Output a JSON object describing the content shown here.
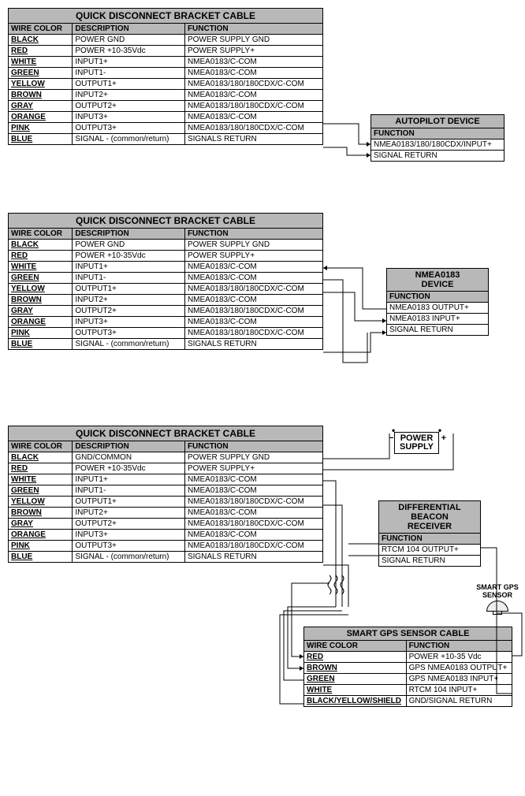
{
  "sections": [
    {
      "cable": {
        "title": "QUICK DISCONNECT BRACKET CABLE",
        "headers": [
          "WIRE COLOR",
          "DESCRIPTION",
          "FUNCTION"
        ],
        "rows": [
          [
            "BLACK",
            "POWER GND",
            "POWER SUPPLY GND"
          ],
          [
            "RED",
            "POWER +10-35Vdc",
            "POWER SUPPLY+"
          ],
          [
            "WHITE",
            "INPUT1+",
            "NMEA0183/C-COM"
          ],
          [
            "GREEN",
            "INPUT1-",
            "NMEA0183/C-COM"
          ],
          [
            "YELLOW",
            "OUTPUT1+",
            "NMEA0183/180/180CDX/C-COM"
          ],
          [
            "BROWN",
            "INPUT2+",
            "NMEA0183/C-COM"
          ],
          [
            "GRAY",
            "OUTPUT2+",
            "NMEA0183/180/180CDX/C-COM"
          ],
          [
            "ORANGE",
            "INPUT3+",
            "NMEA0183/C-COM"
          ],
          [
            "PINK",
            "OUTPUT3+",
            "NMEA0183/180/180CDX/C-COM"
          ],
          [
            "BLUE",
            "SIGNAL - (common/return)",
            "SIGNALS RETURN"
          ]
        ]
      },
      "device": {
        "title": "AUTOPILOT DEVICE",
        "header": "FUNCTION",
        "rows": [
          "NMEA0183/180/180CDX/INPUT+",
          "SIGNAL RETURN"
        ]
      }
    },
    {
      "cable": {
        "title": "QUICK DISCONNECT BRACKET CABLE",
        "headers": [
          "WIRE COLOR",
          "DESCRIPTION",
          "FUNCTION"
        ],
        "rows": [
          [
            "BLACK",
            "POWER GND",
            "POWER SUPPLY GND"
          ],
          [
            "RED",
            "POWER +10-35Vdc",
            "POWER SUPPLY+"
          ],
          [
            "WHITE",
            "INPUT1+",
            "NMEA0183/C-COM"
          ],
          [
            "GREEN",
            "INPUT1-",
            "NMEA0183/C-COM"
          ],
          [
            "YELLOW",
            "OUTPUT1+",
            "NMEA0183/180/180CDX/C-COM"
          ],
          [
            "BROWN",
            "INPUT2+",
            "NMEA0183/C-COM"
          ],
          [
            "GRAY",
            "OUTPUT2+",
            "NMEA0183/180/180CDX/C-COM"
          ],
          [
            "ORANGE",
            "INPUT3+",
            "NMEA0183/C-COM"
          ],
          [
            "PINK",
            "OUTPUT3+",
            "NMEA0183/180/180CDX/C-COM"
          ],
          [
            "BLUE",
            "SIGNAL - (common/return)",
            "SIGNALS RETURN"
          ]
        ]
      },
      "device": {
        "title": "NMEA0183 DEVICE",
        "header": "FUNCTION",
        "rows": [
          "NMEA0183 OUTPUT+",
          "NMEA0183 INPUT+",
          "SIGNAL RETURN"
        ]
      }
    },
    {
      "cable": {
        "title": "QUICK DISCONNECT BRACKET CABLE",
        "headers": [
          "WIRE COLOR",
          "DESCRIPTION",
          "FUNCTION"
        ],
        "rows": [
          [
            "BLACK",
            "GND/COMMON",
            "POWER SUPPLY GND"
          ],
          [
            "RED",
            "POWER +10-35Vdc",
            "POWER SUPPLY+"
          ],
          [
            "WHITE",
            "INPUT1+",
            "NMEA0183/C-COM"
          ],
          [
            "GREEN",
            "INPUT1-",
            "NMEA0183/C-COM"
          ],
          [
            "YELLOW",
            "OUTPUT1+",
            "NMEA0183/180/180CDX/C-COM"
          ],
          [
            "BROWN",
            "INPUT2+",
            "NMEA0183/C-COM"
          ],
          [
            "GRAY",
            "OUTPUT2+",
            "NMEA0183/180/180CDX/C-COM"
          ],
          [
            "ORANGE",
            "INPUT3+",
            "NMEA0183/C-COM"
          ],
          [
            "PINK",
            "OUTPUT3+",
            "NMEA0183/180/180CDX/C-COM"
          ],
          [
            "BLUE",
            "SIGNAL - (common/return)",
            "SIGNALS RETURN"
          ]
        ]
      },
      "device": {
        "title": "DIFFERENTIAL BEACON RECEIVER",
        "header": "FUNCTION",
        "rows": [
          "RTCM 104 OUTPUT+",
          "SIGNAL RETURN"
        ]
      },
      "power": {
        "label": "POWER\nSUPPLY",
        "minus": "−",
        "plus": "+"
      },
      "gps_label": "SMART GPS SENSOR",
      "gps_cable": {
        "title": "SMART GPS SENSOR CABLE",
        "headers": [
          "WIRE COLOR",
          "FUNCTION"
        ],
        "rows": [
          [
            "RED",
            "POWER +10-35 Vdc"
          ],
          [
            "BROWN",
            "GPS NMEA0183 OUTPUT+"
          ],
          [
            "GREEN",
            "GPS NMEA0183 INPUT+"
          ],
          [
            "WHITE",
            "RTCM 104 INPUT+"
          ],
          [
            "BLACK/YELLOW/SHIELD",
            "GND/SIGNAL RETURN"
          ]
        ]
      }
    }
  ],
  "colors": {
    "header_bg": "#b8b8b8",
    "border": "#000000",
    "bg": "#ffffff"
  }
}
